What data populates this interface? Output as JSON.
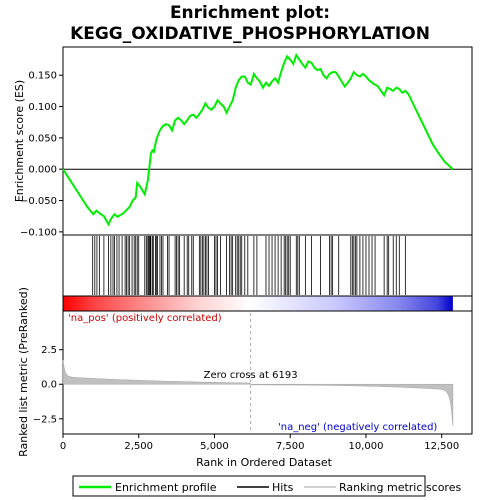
{
  "chart_data": {
    "type": "line",
    "title_line1": "Enrichment plot:",
    "title_line2": "KEGG_OXIDATIVE_PHOSPHORYLATION",
    "xlabel": "Rank in Ordered Dataset",
    "ylabel_top": "Enrichment score (ES)",
    "ylabel_bottom": "Ranked list metric (PreRanked)",
    "xlim": [
      0,
      13500
    ],
    "x_ticks": [
      0,
      2500,
      5000,
      7500,
      10000,
      12500
    ],
    "x_tick_labels": [
      "0",
      "2,500",
      "5,000",
      "7,500",
      "10,000",
      "12,500"
    ],
    "es_ylim": [
      -0.105,
      0.195
    ],
    "es_ticks": [
      -0.1,
      -0.05,
      0.0,
      0.05,
      0.1,
      0.15
    ],
    "es_tick_labels": [
      "−0.100",
      "−0.050",
      "0.000",
      "0.050",
      "0.100",
      "0.150"
    ],
    "metric_ylim": [
      -3.6,
      5.3
    ],
    "metric_ticks": [
      -2.5,
      0.0,
      2.5
    ],
    "metric_tick_labels": [
      "−2.5",
      "0.0",
      "2.5"
    ],
    "n_genes": 12870,
    "zero_cross": 6193,
    "zero_cross_label": "Zero cross at 6193",
    "pos_label": "'na_pos' (positively correlated)",
    "neg_label": "'na_neg' (negatively correlated)",
    "series": [
      {
        "name": "Enrichment profile",
        "color": "#00ee00",
        "x": [
          0,
          400,
          800,
          1000,
          1100,
          1200,
          1350,
          1500,
          1600,
          1700,
          1800,
          1900,
          2000,
          2100,
          2200,
          2300,
          2400,
          2450,
          2550,
          2700,
          2800,
          2850,
          2900,
          2950,
          3000,
          3050,
          3100,
          3200,
          3300,
          3400,
          3500,
          3600,
          3700,
          3800,
          3900,
          4000,
          4100,
          4200,
          4300,
          4400,
          4500,
          4600,
          4700,
          4800,
          4900,
          5000,
          5100,
          5200,
          5300,
          5400,
          5500,
          5600,
          5700,
          5800,
          5900,
          6000,
          6100,
          6200,
          6300,
          6400,
          6500,
          6600,
          6700,
          6800,
          6900,
          7000,
          7100,
          7200,
          7300,
          7400,
          7500,
          7600,
          7700,
          7800,
          7900,
          8000,
          8100,
          8200,
          8300,
          8400,
          8500,
          8600,
          8700,
          8800,
          8900,
          9000,
          9100,
          9200,
          9300,
          9400,
          9500,
          9600,
          9700,
          9800,
          9900,
          10000,
          10100,
          10200,
          10300,
          10400,
          10500,
          10600,
          10700,
          10800,
          10900,
          11000,
          11100,
          11200,
          11300,
          11400,
          11600,
          11800,
          12000,
          12200,
          12400,
          12600,
          12870
        ],
        "y": [
          0.0,
          -0.03,
          -0.06,
          -0.072,
          -0.066,
          -0.07,
          -0.075,
          -0.088,
          -0.078,
          -0.072,
          -0.076,
          -0.073,
          -0.07,
          -0.065,
          -0.06,
          -0.05,
          -0.045,
          -0.022,
          -0.028,
          -0.04,
          -0.018,
          0.002,
          0.025,
          0.03,
          0.028,
          0.04,
          0.05,
          0.062,
          0.069,
          0.072,
          0.07,
          0.062,
          0.078,
          0.082,
          0.078,
          0.072,
          0.078,
          0.085,
          0.087,
          0.082,
          0.088,
          0.095,
          0.105,
          0.098,
          0.095,
          0.1,
          0.11,
          0.105,
          0.1,
          0.09,
          0.1,
          0.11,
          0.13,
          0.142,
          0.148,
          0.148,
          0.138,
          0.135,
          0.152,
          0.145,
          0.14,
          0.13,
          0.138,
          0.133,
          0.14,
          0.145,
          0.138,
          0.155,
          0.17,
          0.18,
          0.175,
          0.168,
          0.182,
          0.175,
          0.168,
          0.162,
          0.172,
          0.17,
          0.162,
          0.158,
          0.16,
          0.15,
          0.145,
          0.152,
          0.155,
          0.155,
          0.148,
          0.14,
          0.132,
          0.138,
          0.145,
          0.155,
          0.15,
          0.148,
          0.152,
          0.148,
          0.142,
          0.138,
          0.135,
          0.132,
          0.125,
          0.118,
          0.13,
          0.128,
          0.125,
          0.13,
          0.128,
          0.122,
          0.125,
          0.12,
          0.1,
          0.08,
          0.06,
          0.04,
          0.025,
          0.012,
          0.0
        ]
      }
    ],
    "hits": [
      980,
      1050,
      1120,
      1200,
      1350,
      1500,
      1580,
      1650,
      1700,
      1780,
      1850,
      1950,
      2050,
      2100,
      2150,
      2200,
      2280,
      2350,
      2400,
      2450,
      2500,
      2700,
      2750,
      2800,
      2830,
      2860,
      2880,
      2900,
      2950,
      2980,
      3050,
      3080,
      3120,
      3200,
      3250,
      3300,
      3450,
      3500,
      3700,
      3750,
      3800,
      3850,
      4000,
      4100,
      4150,
      4250,
      4300,
      4500,
      4550,
      4600,
      4650,
      4700,
      4750,
      4800,
      5000,
      5050,
      5100,
      5200,
      5400,
      5500,
      5550,
      5600,
      5700,
      5750,
      5800,
      5850,
      5900,
      6000,
      6100,
      6300,
      6400,
      6700,
      6800,
      6900,
      7000,
      7100,
      7200,
      7300,
      7350,
      7400,
      7450,
      7500,
      7700,
      7750,
      7800,
      8000,
      8200,
      8500,
      8800,
      8850,
      8900,
      9100,
      9500,
      9550,
      9600,
      9650,
      9700,
      9800,
      9900,
      10000,
      10100,
      10200,
      10300,
      10600,
      10700,
      10750,
      10900,
      11000,
      11100,
      11300
    ],
    "legend": {
      "items": [
        {
          "label": "Enrichment profile",
          "color": "#00ee00"
        },
        {
          "label": "Hits",
          "color": "#000000"
        },
        {
          "label": "Ranking metric scores",
          "color": "#c0c0c0"
        }
      ]
    }
  }
}
